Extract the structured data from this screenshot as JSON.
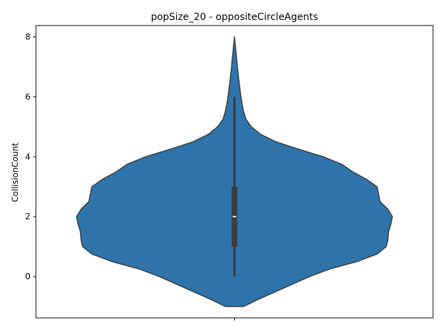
{
  "chart_data": {
    "type": "violin",
    "title": "popSize_20 - oppositeCircleAgents",
    "xlabel": "",
    "ylabel": "CollisionCount",
    "ylim": [
      -1.38,
      8.38
    ],
    "yticks": [
      0,
      2,
      4,
      6,
      8
    ],
    "grid": false,
    "legend": "none",
    "color": "#2e73a9",
    "edge_color": "#3b3b3b",
    "violin": {
      "density_profile": [
        {
          "y": -1.0,
          "w": 0.06
        },
        {
          "y": -0.75,
          "w": 0.16
        },
        {
          "y": -0.5,
          "w": 0.27
        },
        {
          "y": -0.25,
          "w": 0.38
        },
        {
          "y": 0.0,
          "w": 0.49
        },
        {
          "y": 0.25,
          "w": 0.62
        },
        {
          "y": 0.5,
          "w": 0.8
        },
        {
          "y": 0.75,
          "w": 0.93
        },
        {
          "y": 1.0,
          "w": 0.99
        },
        {
          "y": 1.2,
          "w": 1.0
        },
        {
          "y": 1.5,
          "w": 1.005
        },
        {
          "y": 1.75,
          "w": 1.02
        },
        {
          "y": 2.0,
          "w": 1.03
        },
        {
          "y": 2.25,
          "w": 1.0
        },
        {
          "y": 2.5,
          "w": 0.95
        },
        {
          "y": 2.75,
          "w": 0.94
        },
        {
          "y": 3.0,
          "w": 0.93
        },
        {
          "y": 3.25,
          "w": 0.86
        },
        {
          "y": 3.5,
          "w": 0.77
        },
        {
          "y": 3.75,
          "w": 0.7
        },
        {
          "y": 4.0,
          "w": 0.58
        },
        {
          "y": 4.25,
          "w": 0.42
        },
        {
          "y": 4.5,
          "w": 0.27
        },
        {
          "y": 4.75,
          "w": 0.17
        },
        {
          "y": 5.0,
          "w": 0.11
        },
        {
          "y": 5.25,
          "w": 0.075
        },
        {
          "y": 5.5,
          "w": 0.06
        },
        {
          "y": 5.75,
          "w": 0.05
        },
        {
          "y": 6.0,
          "w": 0.042
        },
        {
          "y": 6.5,
          "w": 0.03
        },
        {
          "y": 7.0,
          "w": 0.019
        },
        {
          "y": 7.5,
          "w": 0.01
        },
        {
          "y": 8.0,
          "w": 0.0
        }
      ],
      "whisker_low": 0,
      "q1": 1,
      "median": 2,
      "q3": 3,
      "whisker_high": 6
    }
  }
}
